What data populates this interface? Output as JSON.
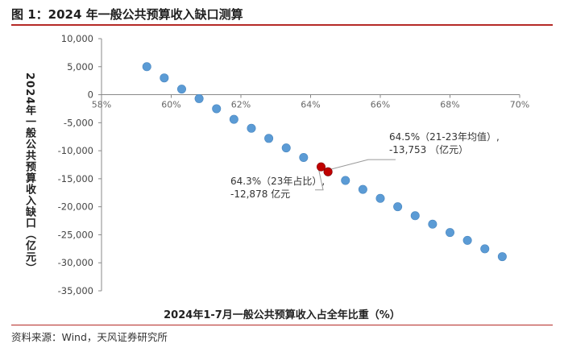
{
  "header": {
    "title": "图 1：2024 年一般公共预算收入缺口测算"
  },
  "footer": {
    "source": "资料来源：Wind，天风证券研究所"
  },
  "colors": {
    "accent_rule": "#b52a26",
    "series_blue": "#5b9bd5",
    "highlight_red": "#c00000",
    "axis": "#888888"
  },
  "chart_data": {
    "type": "scatter",
    "title": "",
    "xlabel": "2024年1-7月一般公共预算收入占全年比重（%）",
    "ylabel": "2024年一般公共预算收入缺口（亿元）",
    "xlim": [
      58,
      70
    ],
    "ylim": [
      -35000,
      10000
    ],
    "x_ticks": [
      58,
      60,
      62,
      64,
      66,
      68,
      70
    ],
    "x_tick_labels": [
      "58%",
      "60%",
      "62%",
      "64%",
      "66%",
      "68%",
      "70%"
    ],
    "y_ticks": [
      10000,
      5000,
      0,
      -5000,
      -10000,
      -15000,
      -20000,
      -25000,
      -30000,
      -35000
    ],
    "y_tick_labels": [
      "10,000",
      "5,000",
      "0",
      "-5,000",
      "-10,000",
      "-15,000",
      "-20,000",
      "-25,000",
      "-30,000",
      "-35,000"
    ],
    "grid": false,
    "series": [
      {
        "color": "#5b9bd5",
        "points": [
          [
            59.3,
            5000
          ],
          [
            59.8,
            3000
          ],
          [
            60.3,
            1000
          ],
          [
            60.8,
            -700
          ],
          [
            61.3,
            -2500
          ],
          [
            61.8,
            -4400
          ],
          [
            62.3,
            -6000
          ],
          [
            62.8,
            -7800
          ],
          [
            63.3,
            -9500
          ],
          [
            63.8,
            -11200
          ],
          [
            64.5,
            -13753
          ],
          [
            65.0,
            -15300
          ],
          [
            65.5,
            -16900
          ],
          [
            66.0,
            -18500
          ],
          [
            66.5,
            -20000
          ],
          [
            67.0,
            -21600
          ],
          [
            67.5,
            -23100
          ],
          [
            68.0,
            -24600
          ],
          [
            68.5,
            -26000
          ],
          [
            69.0,
            -27500
          ],
          [
            69.5,
            -28900
          ]
        ]
      },
      {
        "color": "#c00000",
        "points": [
          [
            64.3,
            -12878
          ],
          [
            64.5,
            -13753
          ]
        ]
      }
    ],
    "annotations": [
      {
        "lines": [
          "64.5%（21-23年均值）,",
          "-13,753 （亿元）"
        ],
        "target": [
          64.5,
          -13753
        ],
        "text_at": [
          66.3,
          -9000
        ]
      },
      {
        "lines": [
          "64.3%（23年占比）,",
          "-12,878 亿元"
        ],
        "target": [
          64.3,
          -12878
        ],
        "text_at": [
          61.7,
          -17000
        ]
      }
    ]
  }
}
